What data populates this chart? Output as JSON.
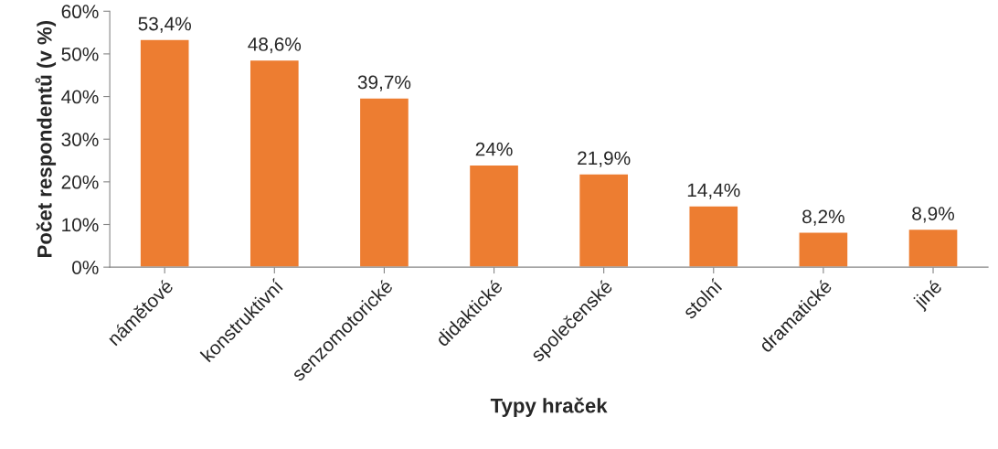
{
  "chart_data": {
    "type": "bar",
    "categories": [
      "námětové",
      "konstruktivní",
      "senzomotorické",
      "didaktické",
      "společenské",
      "stolní",
      "dramatické",
      "jiné"
    ],
    "values": [
      53.4,
      48.6,
      39.7,
      24,
      21.9,
      14.4,
      8.2,
      8.9
    ],
    "value_labels": [
      "53,4%",
      "48,6%",
      "39,7%",
      "24%",
      "21,9%",
      "14,4%",
      "8,2%",
      "8,9%"
    ],
    "color": "#ed7d31",
    "xlabel": "Typy hraček",
    "ylabel": "Počet respondentů (v %)",
    "ylim": [
      0,
      60
    ],
    "yticks": [
      {
        "value": 0,
        "label": "0%"
      },
      {
        "value": 10,
        "label": "10%"
      },
      {
        "value": 20,
        "label": "20%"
      },
      {
        "value": 30,
        "label": "30%"
      },
      {
        "value": 40,
        "label": "40%"
      },
      {
        "value": 50,
        "label": "50%"
      },
      {
        "value": 60,
        "label": "60%"
      }
    ],
    "grid": false,
    "legend": false
  }
}
